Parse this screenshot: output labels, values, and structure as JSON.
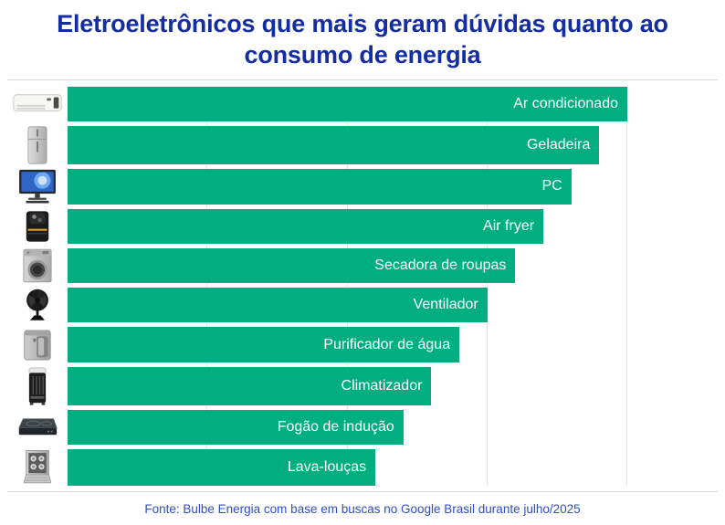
{
  "title": "Eletroeletrônicos que mais geram dúvidas quanto ao consumo de energia",
  "footer": {
    "source": "Fonte: Bulbe Energia com base em buscas no Google Brasil durante julho/2025"
  },
  "colors": {
    "bar": "#00AE7F",
    "title_text": "#152DA3",
    "source_text": "#2F4DC8",
    "gridline": "#E4E4E4",
    "divider": "#DBDBDB",
    "bar_label_text": "#FFFFFF"
  },
  "chart_data": {
    "type": "bar",
    "orientation": "horizontal",
    "title": "Eletroeletrônicos que mais geram dúvidas quanto ao consumo de energia",
    "categories": [
      "Ar condicionado",
      "Geladeira",
      "PC",
      "Air fryer",
      "Secadora de roupas",
      "Ventilador",
      "Purificador de água",
      "Climatizador",
      "Fogão de indução",
      "Lava-louças"
    ],
    "values": [
      100,
      95,
      90,
      85,
      80,
      75,
      70,
      65,
      60,
      55
    ],
    "value_labels_shown": false,
    "values_estimated_from_bar_lengths": true,
    "xlim": [
      0,
      100
    ],
    "gridlines_x": [
      25,
      50,
      75,
      100
    ],
    "grid": "vertical-light-gray",
    "legend": false,
    "bar_label_position": "inside-right",
    "icons": [
      "air-conditioner",
      "refrigerator",
      "desktop-pc",
      "air-fryer",
      "clothes-dryer",
      "fan",
      "water-purifier",
      "air-cooler",
      "induction-cooktop",
      "dishwasher"
    ]
  }
}
